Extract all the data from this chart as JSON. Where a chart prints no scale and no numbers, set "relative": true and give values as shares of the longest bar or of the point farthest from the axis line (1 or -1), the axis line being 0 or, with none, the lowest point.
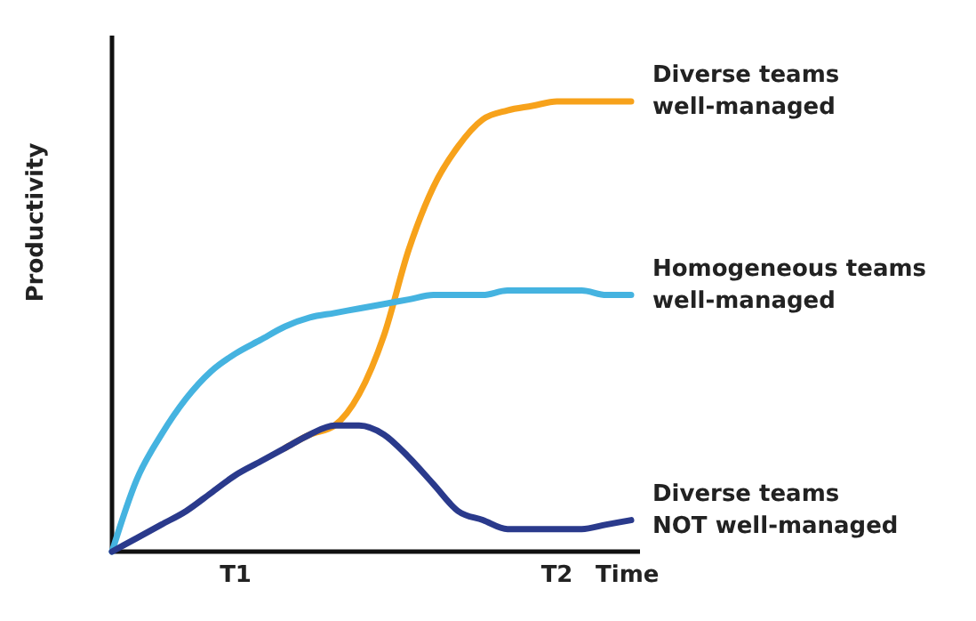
{
  "chart_data": {
    "type": "line",
    "relative": true,
    "xlabel": "Time",
    "ylabel": "Productivity",
    "categories": [
      null,
      null,
      null,
      null,
      null,
      "T1",
      null,
      null,
      null,
      null,
      null,
      null,
      null,
      null,
      null,
      null,
      null,
      null,
      "T2",
      null,
      null,
      null
    ],
    "series": [
      {
        "name": "Diverse teams well-managed",
        "color": "#f7a21b",
        "values": [
          null,
          null,
          null,
          null,
          null,
          null,
          null,
          0.23,
          0.26,
          0.28,
          0.35,
          0.48,
          0.67,
          0.81,
          0.9,
          0.96,
          0.98,
          0.99,
          1,
          1,
          1,
          1
        ]
      },
      {
        "name": "Homogeneous teams well-managed",
        "color": "#45b3e0",
        "values": [
          0,
          0.16,
          0.26,
          0.34,
          0.4,
          0.44,
          0.47,
          0.5,
          0.52,
          0.53,
          0.54,
          0.55,
          0.56,
          0.57,
          0.57,
          0.57,
          0.58,
          0.58,
          0.58,
          0.58,
          0.57,
          0.57
        ]
      },
      {
        "name": "Diverse teams NOT well-managed",
        "color": "#2a3a8c",
        "values": [
          0,
          0.03,
          0.06,
          0.09,
          0.13,
          0.17,
          0.2,
          0.23,
          0.26,
          0.28,
          0.28,
          0.26,
          0.21,
          0.15,
          0.09,
          0.07,
          0.05,
          0.05,
          0.05,
          0.05,
          0.06,
          0.07
        ]
      }
    ],
    "grid": false,
    "marker": "none",
    "line_style": "solid"
  }
}
